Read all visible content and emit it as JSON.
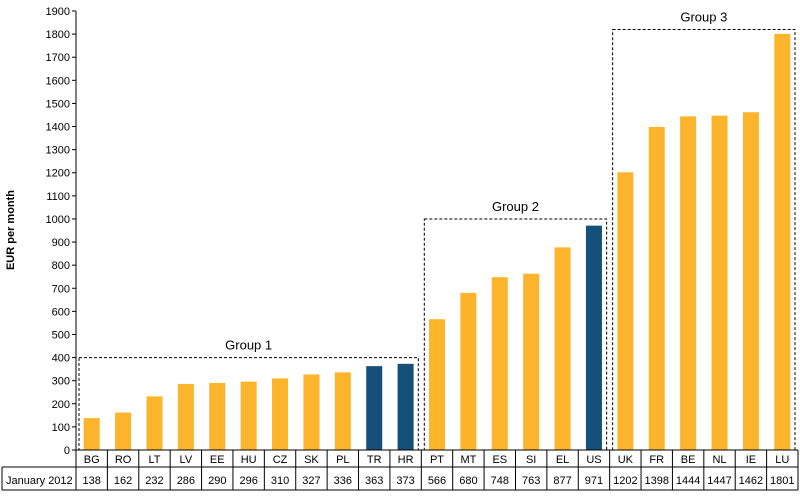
{
  "chart_data": {
    "type": "bar",
    "ylabel": "EUR per month",
    "ylim": [
      0,
      1900
    ],
    "y_ticks": [
      0,
      100,
      200,
      300,
      400,
      500,
      600,
      700,
      800,
      900,
      1000,
      1100,
      1200,
      1300,
      1400,
      1500,
      1600,
      1700,
      1800,
      1900
    ],
    "grid": false,
    "categories": [
      "BG",
      "RO",
      "LT",
      "LV",
      "EE",
      "HU",
      "CZ",
      "SK",
      "PL",
      "TR",
      "HR",
      "PT",
      "MT",
      "ES",
      "SI",
      "EL",
      "US",
      "UK",
      "FR",
      "BE",
      "NL",
      "IE",
      "LU"
    ],
    "series": [
      {
        "name": "January 2012",
        "values": [
          138,
          162,
          232,
          286,
          290,
          296,
          310,
          327,
          336,
          363,
          373,
          566,
          680,
          748,
          763,
          877,
          971,
          1202,
          1398,
          1444,
          1447,
          1462,
          1801
        ]
      }
    ],
    "highlighted": [
      "TR",
      "HR",
      "US"
    ],
    "colors": {
      "default": "#FBB42B",
      "highlight": "#14507A"
    },
    "groups": [
      {
        "label": "Group 1",
        "from": 0,
        "to": 10,
        "max": 400
      },
      {
        "label": "Group 2",
        "from": 11,
        "to": 16,
        "max": 1000
      },
      {
        "label": "Group 3",
        "from": 17,
        "to": 22,
        "max": 1820
      }
    ],
    "table_row_label": "January 2012"
  }
}
